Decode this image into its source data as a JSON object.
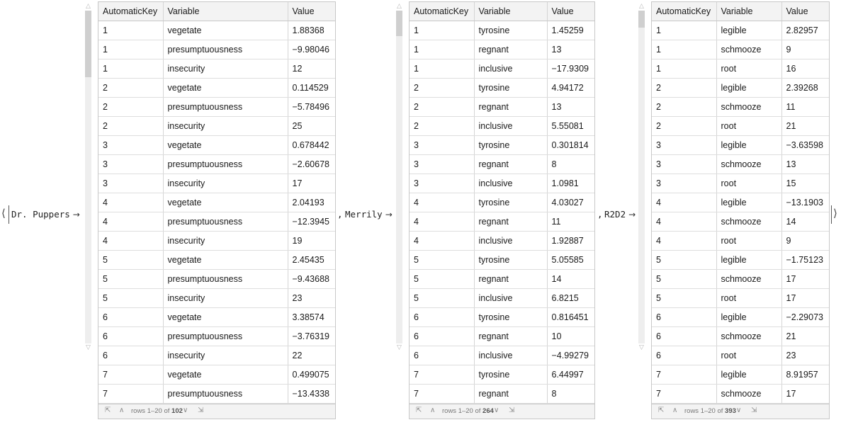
{
  "brackets": {
    "open": "⟨",
    "close": "⟩",
    "separator": ","
  },
  "datasets": [
    {
      "key": "Dr. Puppers",
      "key_arrow": "→",
      "columns": [
        "AutomaticKey",
        "Variable",
        "Value"
      ],
      "rows": [
        [
          "1",
          "vegetate",
          "1.88368"
        ],
        [
          "1",
          "presumptuousness",
          "−9.98046"
        ],
        [
          "1",
          "insecurity",
          "12"
        ],
        [
          "2",
          "vegetate",
          "0.114529"
        ],
        [
          "2",
          "presumptuousness",
          "−5.78496"
        ],
        [
          "2",
          "insecurity",
          "25"
        ],
        [
          "3",
          "vegetate",
          "0.678442"
        ],
        [
          "3",
          "presumptuousness",
          "−2.60678"
        ],
        [
          "3",
          "insecurity",
          "17"
        ],
        [
          "4",
          "vegetate",
          "2.04193"
        ],
        [
          "4",
          "presumptuousness",
          "−12.3945"
        ],
        [
          "4",
          "insecurity",
          "19"
        ],
        [
          "5",
          "vegetate",
          "2.45435"
        ],
        [
          "5",
          "presumptuousness",
          "−9.43688"
        ],
        [
          "5",
          "insecurity",
          "23"
        ],
        [
          "6",
          "vegetate",
          "3.38574"
        ],
        [
          "6",
          "presumptuousness",
          "−3.76319"
        ],
        [
          "6",
          "insecurity",
          "22"
        ],
        [
          "7",
          "vegetate",
          "0.499075"
        ],
        [
          "7",
          "presumptuousness",
          "−13.4338"
        ]
      ],
      "footer": {
        "rows_prefix": "rows 1–20 of ",
        "total": "102"
      },
      "scroll_fraction_visible": 0.2
    },
    {
      "key": "Merrily",
      "key_arrow": "→",
      "columns": [
        "AutomaticKey",
        "Variable",
        "Value"
      ],
      "rows": [
        [
          "1",
          "tyrosine",
          "1.45259"
        ],
        [
          "1",
          "regnant",
          "13"
        ],
        [
          "1",
          "inclusive",
          "−17.9309"
        ],
        [
          "2",
          "tyrosine",
          "4.94172"
        ],
        [
          "2",
          "regnant",
          "13"
        ],
        [
          "2",
          "inclusive",
          "5.55081"
        ],
        [
          "3",
          "tyrosine",
          "0.301814"
        ],
        [
          "3",
          "regnant",
          "8"
        ],
        [
          "3",
          "inclusive",
          "1.0981"
        ],
        [
          "4",
          "tyrosine",
          "4.03027"
        ],
        [
          "4",
          "regnant",
          "11"
        ],
        [
          "4",
          "inclusive",
          "1.92887"
        ],
        [
          "5",
          "tyrosine",
          "5.05585"
        ],
        [
          "5",
          "regnant",
          "14"
        ],
        [
          "5",
          "inclusive",
          "6.8215"
        ],
        [
          "6",
          "tyrosine",
          "0.816451"
        ],
        [
          "6",
          "regnant",
          "10"
        ],
        [
          "6",
          "inclusive",
          "−4.99279"
        ],
        [
          "7",
          "tyrosine",
          "6.44997"
        ],
        [
          "7",
          "regnant",
          "8"
        ]
      ],
      "footer": {
        "rows_prefix": "rows 1–20 of ",
        "total": "264"
      },
      "scroll_fraction_visible": 0.076
    },
    {
      "key": "R2D2",
      "key_arrow": "→",
      "columns": [
        "AutomaticKey",
        "Variable",
        "Value"
      ],
      "rows": [
        [
          "1",
          "legible",
          "2.82957"
        ],
        [
          "1",
          "schmooze",
          "9"
        ],
        [
          "1",
          "root",
          "16"
        ],
        [
          "2",
          "legible",
          "2.39268"
        ],
        [
          "2",
          "schmooze",
          "11"
        ],
        [
          "2",
          "root",
          "21"
        ],
        [
          "3",
          "legible",
          "−3.63598"
        ],
        [
          "3",
          "schmooze",
          "13"
        ],
        [
          "3",
          "root",
          "15"
        ],
        [
          "4",
          "legible",
          "−13.1903"
        ],
        [
          "4",
          "schmooze",
          "14"
        ],
        [
          "4",
          "root",
          "9"
        ],
        [
          "5",
          "legible",
          "−1.75123"
        ],
        [
          "5",
          "schmooze",
          "17"
        ],
        [
          "5",
          "root",
          "17"
        ],
        [
          "6",
          "legible",
          "−2.29073"
        ],
        [
          "6",
          "schmooze",
          "21"
        ],
        [
          "6",
          "root",
          "23"
        ],
        [
          "7",
          "legible",
          "8.91957"
        ],
        [
          "7",
          "schmooze",
          "17"
        ]
      ],
      "footer": {
        "rows_prefix": "rows 1–20 of ",
        "total": "393"
      },
      "scroll_fraction_visible": 0.051
    }
  ],
  "icons": {
    "scroll_up": "chevron-up-icon",
    "scroll_down": "chevron-down-icon",
    "first_page": "first-page-icon",
    "prev_page": "prev-page-icon",
    "next_page": "next-page-icon",
    "last_page": "last-page-icon"
  }
}
